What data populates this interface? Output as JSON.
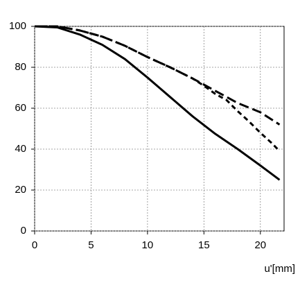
{
  "chart_data": {
    "type": "line",
    "x_label": "u'[mm]",
    "xlim": [
      0,
      22.1
    ],
    "xticks": [
      0,
      5,
      10,
      15,
      20
    ],
    "ylim": [
      0,
      100
    ],
    "yticks": [
      0,
      20,
      40,
      60,
      80,
      100
    ],
    "grid": true,
    "series": [
      {
        "color": "#000000",
        "dash": "solid",
        "x": [
          0,
          2,
          4,
          6,
          8,
          10,
          12,
          14,
          16,
          18,
          20,
          21.7
        ],
        "values": [
          100,
          99.5,
          96,
          91,
          84,
          75,
          65.5,
          56,
          47.5,
          40,
          32,
          25
        ]
      },
      {
        "color": "#000000",
        "dash": "long",
        "x": [
          0,
          2,
          4,
          6,
          8,
          10,
          12,
          14,
          16,
          18,
          20,
          21.7
        ],
        "values": [
          100,
          100,
          98,
          95,
          90.5,
          85,
          80,
          74.5,
          68.5,
          62.5,
          58,
          52
        ]
      },
      {
        "color": "#000000",
        "dash": "short",
        "x": [
          0,
          2,
          4,
          6,
          8,
          10,
          12,
          14,
          15,
          16,
          17,
          18,
          19,
          20,
          21,
          21.7
        ],
        "values": [
          100,
          100,
          98,
          95,
          90.5,
          85,
          80,
          74.5,
          71,
          67,
          64,
          58.5,
          53.5,
          48,
          43,
          39
        ]
      }
    ]
  }
}
